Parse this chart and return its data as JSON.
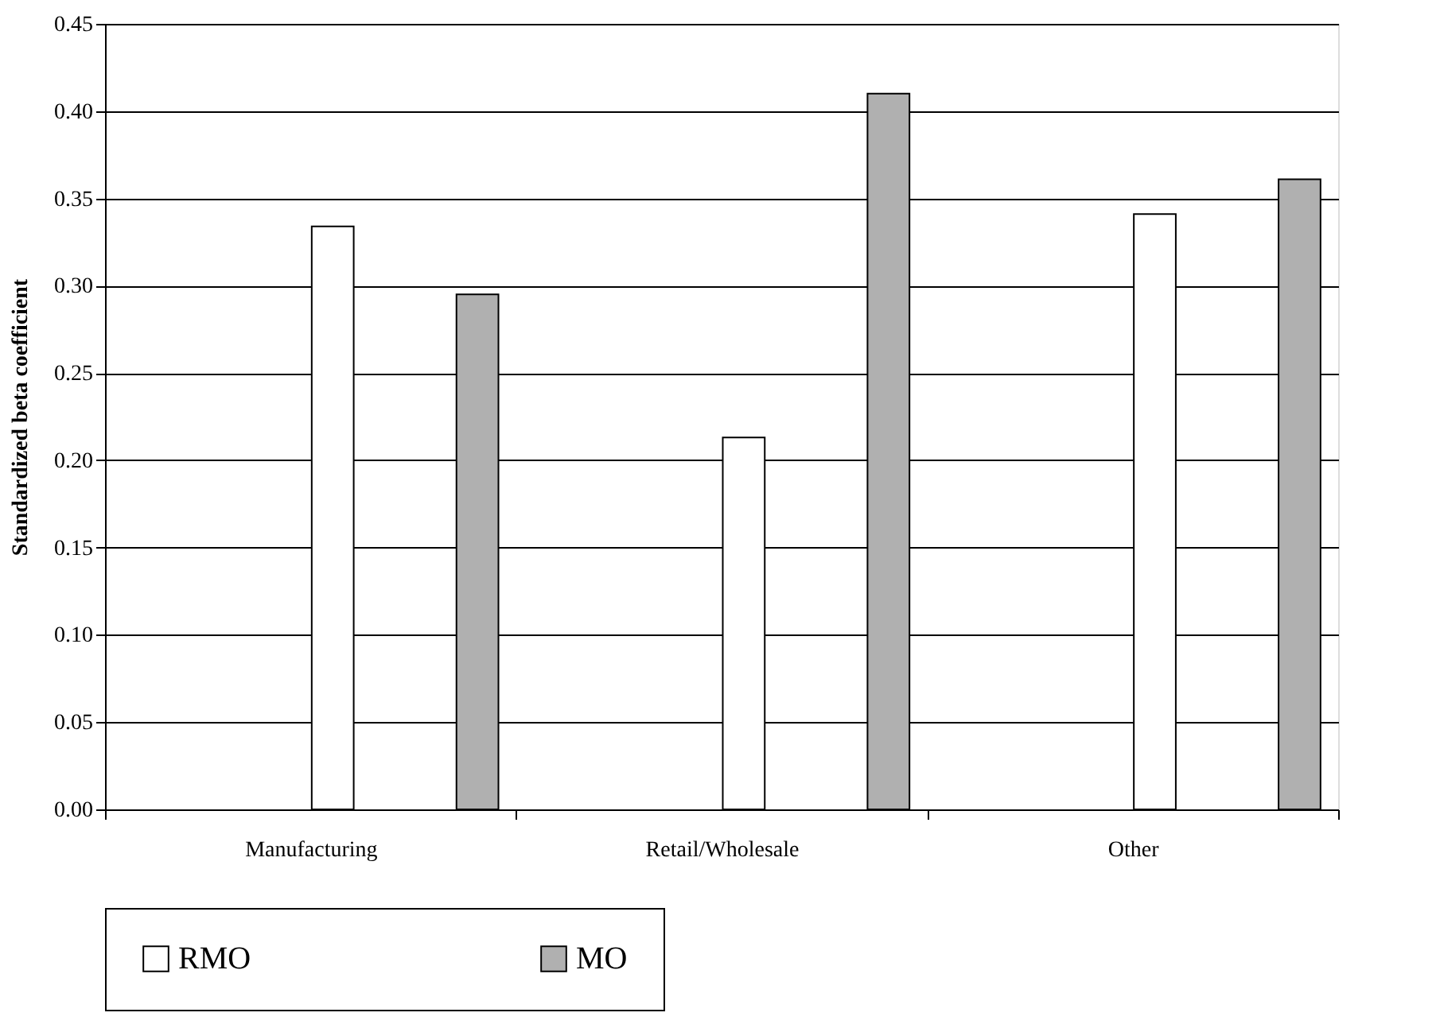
{
  "chart_data": {
    "type": "bar",
    "ylabel": "Standardized beta coefficient",
    "categories": [
      "Manufacturing",
      "Retail/Wholesale",
      "Other"
    ],
    "series": [
      {
        "name": "RMO",
        "color": "#ffffff",
        "values": [
          0.334,
          0.213,
          0.341
        ]
      },
      {
        "name": "MO",
        "color": "#b0b0b0",
        "values": [
          0.295,
          0.41,
          0.361
        ]
      }
    ],
    "ylim": [
      0,
      0.45
    ],
    "yticks": [
      {
        "value": 0,
        "label": "0.00"
      },
      {
        "value": 0.05,
        "label": "0.05"
      },
      {
        "value": 0.1,
        "label": "0.10"
      },
      {
        "value": 0.15,
        "label": "0.15"
      },
      {
        "value": 0.2,
        "label": "0.20"
      },
      {
        "value": 0.25,
        "label": "0.25"
      },
      {
        "value": 0.3,
        "label": "0.30"
      },
      {
        "value": 0.35,
        "label": "0.35"
      },
      {
        "value": 0.4,
        "label": "0.40"
      },
      {
        "value": 0.45,
        "label": "0.45"
      }
    ],
    "grid": "y",
    "legend": "bottom"
  }
}
